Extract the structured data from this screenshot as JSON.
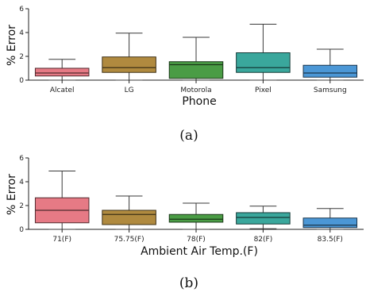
{
  "chart_data": [
    {
      "type": "box",
      "caption": "(a)",
      "xlabel": "Phone",
      "ylabel": "% Error",
      "ylim": [
        0,
        6
      ],
      "yticks": [
        0,
        2,
        4,
        6
      ],
      "grid": false,
      "categories": [
        "Alcatel",
        "LG",
        "Motorola",
        "Pixel",
        "Samsung"
      ],
      "boxes": [
        {
          "label": "Alcatel",
          "whisker_low": 0.0,
          "q1": 0.35,
          "median": 0.6,
          "q3": 1.0,
          "whisker_high": 1.75,
          "color": "#e67a85"
        },
        {
          "label": "LG",
          "whisker_low": 0.0,
          "q1": 0.65,
          "median": 1.05,
          "q3": 1.95,
          "whisker_high": 3.95,
          "color": "#b08a3f"
        },
        {
          "label": "Motorola",
          "whisker_low": 0.0,
          "q1": 0.15,
          "median": 1.3,
          "q3": 1.55,
          "whisker_high": 3.6,
          "color": "#4a9c45"
        },
        {
          "label": "Pixel",
          "whisker_low": 0.0,
          "q1": 0.65,
          "median": 1.05,
          "q3": 2.3,
          "whisker_high": 4.7,
          "color": "#3aa79c"
        },
        {
          "label": "Samsung",
          "whisker_low": 0.0,
          "q1": 0.25,
          "median": 0.6,
          "q3": 1.25,
          "whisker_high": 2.6,
          "color": "#4b97d6"
        }
      ]
    },
    {
      "type": "box",
      "caption": "(b)",
      "xlabel": "Ambient Air Temp.(F)",
      "ylabel": "% Error",
      "ylim": [
        0,
        6
      ],
      "yticks": [
        0,
        2,
        4,
        6
      ],
      "grid": false,
      "categories": [
        "71(F)",
        "75.75(F)",
        "78(F)",
        "82(F)",
        "83.5(F)"
      ],
      "boxes": [
        {
          "label": "71(F)",
          "whisker_low": 0.0,
          "q1": 0.55,
          "median": 1.6,
          "q3": 2.65,
          "whisker_high": 4.9,
          "color": "#e67a85"
        },
        {
          "label": "75.75(F)",
          "whisker_low": 0.0,
          "q1": 0.4,
          "median": 1.25,
          "q3": 1.6,
          "whisker_high": 2.8,
          "color": "#b08a3f"
        },
        {
          "label": "78(F)",
          "whisker_low": 0.0,
          "q1": 0.6,
          "median": 0.85,
          "q3": 1.25,
          "whisker_high": 2.2,
          "color": "#4a9c45"
        },
        {
          "label": "82(F)",
          "whisker_low": 0.05,
          "q1": 0.45,
          "median": 1.0,
          "q3": 1.4,
          "whisker_high": 1.95,
          "color": "#3aa79c"
        },
        {
          "label": "83.5(F)",
          "whisker_low": 0.0,
          "q1": 0.15,
          "median": 0.35,
          "q3": 0.95,
          "whisker_high": 1.75,
          "color": "#4b97d6"
        }
      ]
    }
  ]
}
